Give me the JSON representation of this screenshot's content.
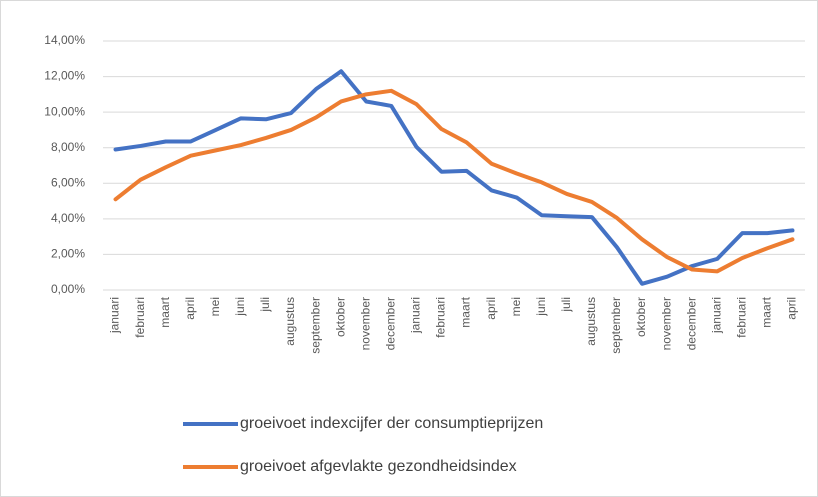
{
  "chart_data": {
    "type": "line",
    "categories": [
      "januari",
      "februari",
      "maart",
      "april",
      "mei",
      "juni",
      "juli",
      "augustus",
      "september",
      "oktober",
      "november",
      "december",
      "januari",
      "februari",
      "maart",
      "april",
      "mei",
      "juni",
      "juli",
      "augustus",
      "september",
      "oktober",
      "november",
      "december",
      "januari",
      "februari",
      "maart",
      "april"
    ],
    "series": [
      {
        "name": "groeivoet indexcijfer der consumptieprijzen",
        "color": "#4472c4",
        "values": [
          7.9,
          8.1,
          8.35,
          8.35,
          9.0,
          9.65,
          9.6,
          9.95,
          11.3,
          12.3,
          10.6,
          10.35,
          8.05,
          6.65,
          6.7,
          5.6,
          5.2,
          4.2,
          4.15,
          4.1,
          2.4,
          0.35,
          0.75,
          1.35,
          1.75,
          3.2,
          3.2,
          3.35
        ]
      },
      {
        "name": "groeivoet afgevlakte gezondheidsindex",
        "color": "#ed7d31",
        "values": [
          5.1,
          6.2,
          6.9,
          7.55,
          7.85,
          8.15,
          8.55,
          9.0,
          9.7,
          10.6,
          11.0,
          11.2,
          10.45,
          9.05,
          8.3,
          7.1,
          6.55,
          6.05,
          5.4,
          4.95,
          4.05,
          2.85,
          1.85,
          1.15,
          1.05,
          1.8,
          2.35,
          2.85
        ]
      }
    ],
    "ylim": [
      0,
      14
    ],
    "yticks": [
      {
        "value": 0,
        "label": "0,00%"
      },
      {
        "value": 2,
        "label": "2,00%"
      },
      {
        "value": 4,
        "label": "4,00%"
      },
      {
        "value": 6,
        "label": "6,00%"
      },
      {
        "value": 8,
        "label": "8,00%"
      },
      {
        "value": 10,
        "label": "10,00%"
      },
      {
        "value": 12,
        "label": "12,00%"
      },
      {
        "value": 14,
        "label": "14,00%"
      }
    ],
    "grid": true,
    "legend": "bottom"
  }
}
